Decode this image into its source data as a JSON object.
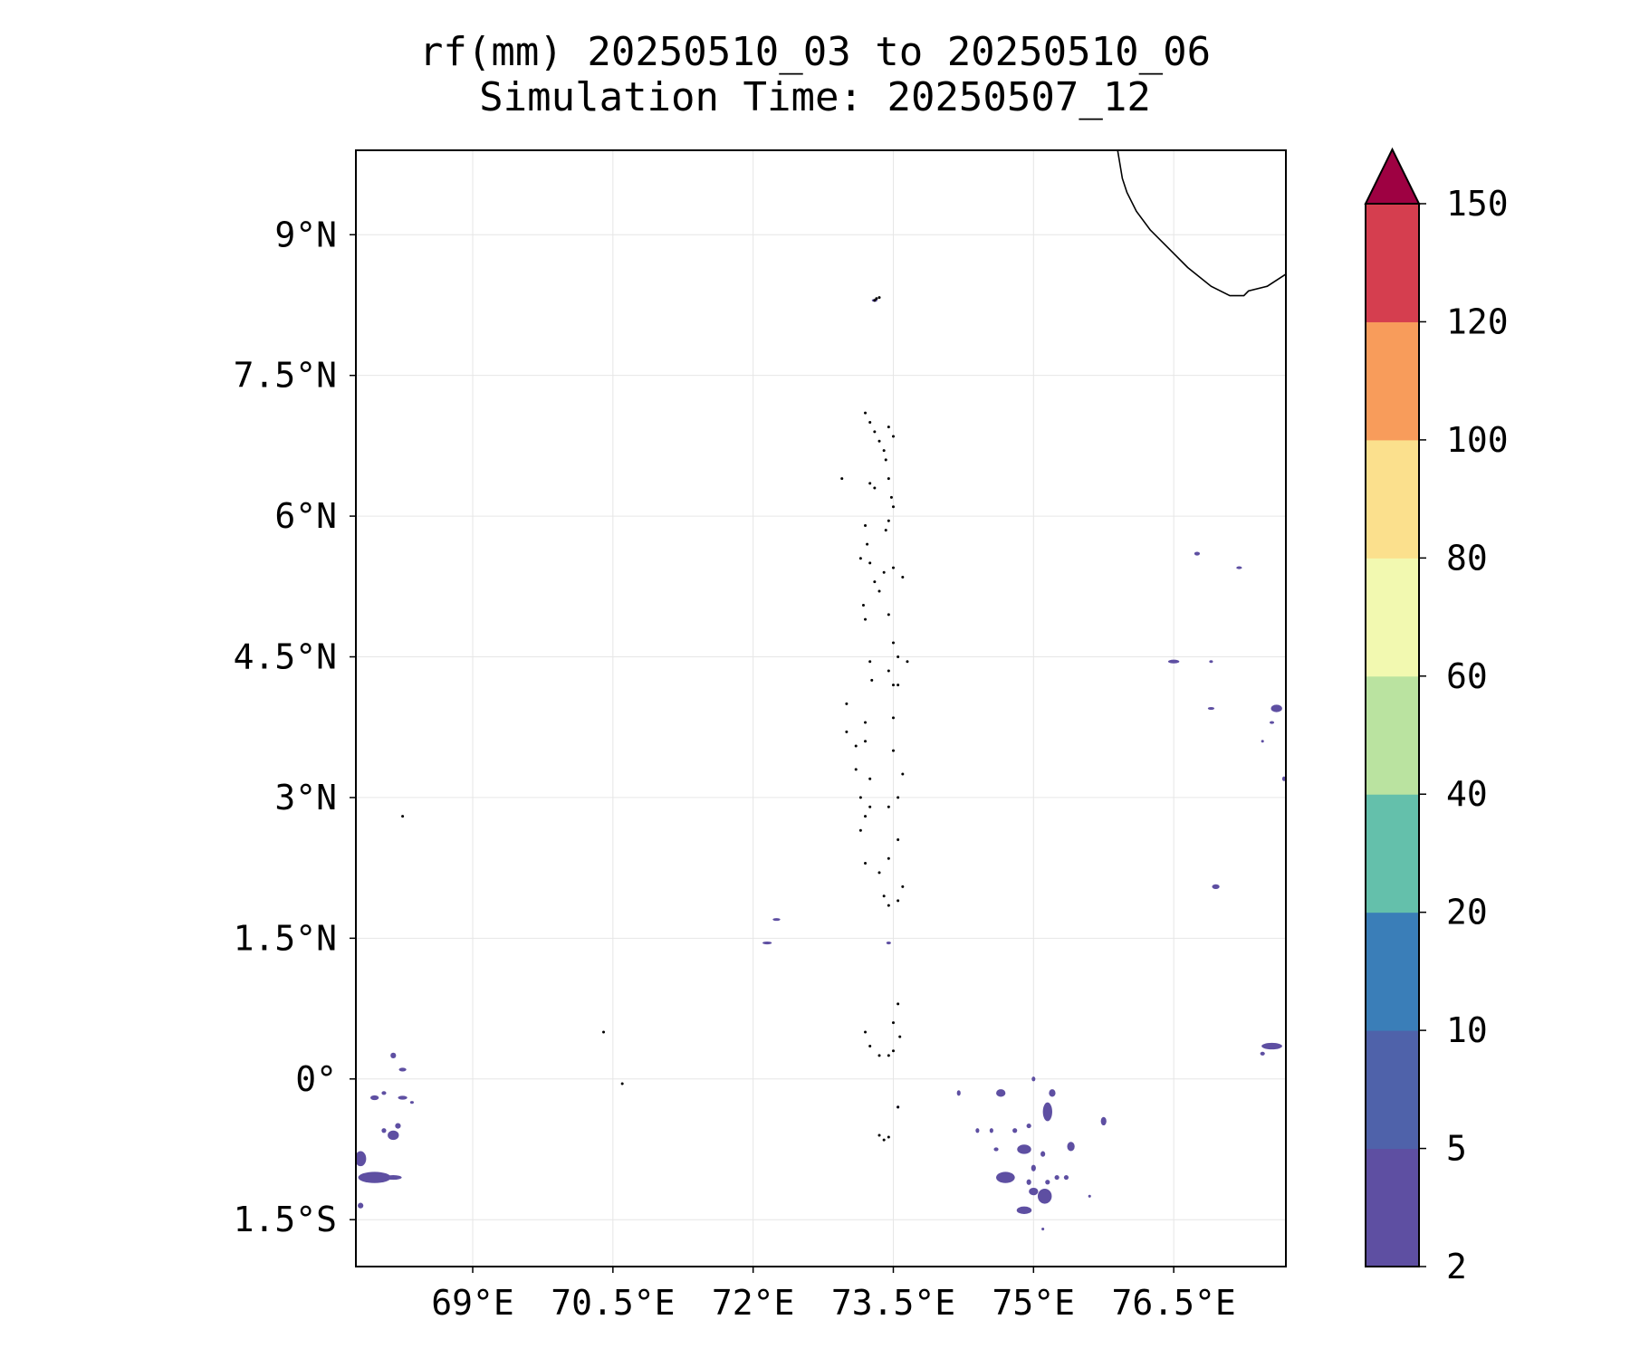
{
  "title": {
    "line1": "rf(mm) 20250510_03 to 20250510_06",
    "line2": "Simulation Time: 20250507_12"
  },
  "map": {
    "lon_range": [
      67.75,
      77.7
    ],
    "lat_range": [
      -2.0,
      9.9
    ],
    "x_ticks": [
      {
        "value": 69,
        "label": "69°E"
      },
      {
        "value": 70.5,
        "label": "70.5°E"
      },
      {
        "value": 72,
        "label": "72°E"
      },
      {
        "value": 73.5,
        "label": "73.5°E"
      },
      {
        "value": 75,
        "label": "75°E"
      },
      {
        "value": 76.5,
        "label": "76.5°E"
      }
    ],
    "y_ticks": [
      {
        "value": 9,
        "label": "9°N"
      },
      {
        "value": 7.5,
        "label": "7.5°N"
      },
      {
        "value": 6,
        "label": "6°N"
      },
      {
        "value": 4.5,
        "label": "4.5°N"
      },
      {
        "value": 3,
        "label": "3°N"
      },
      {
        "value": 1.5,
        "label": "1.5°N"
      },
      {
        "value": 0,
        "label": "0°"
      },
      {
        "value": -1.5,
        "label": "1.5°S"
      }
    ],
    "gridlines": true,
    "coastline": [
      [
        75.9,
        9.9
      ],
      [
        75.95,
        9.6
      ],
      [
        76.0,
        9.45
      ],
      [
        76.1,
        9.25
      ],
      [
        76.25,
        9.05
      ],
      [
        76.45,
        8.85
      ],
      [
        76.65,
        8.65
      ],
      [
        76.9,
        8.45
      ],
      [
        77.1,
        8.35
      ],
      [
        77.25,
        8.35
      ],
      [
        77.3,
        8.4
      ],
      [
        77.5,
        8.45
      ],
      [
        77.7,
        8.58
      ]
    ],
    "islands": [
      [
        73.3,
        8.3
      ],
      [
        73.32,
        8.32
      ],
      [
        73.35,
        8.33
      ],
      [
        73.2,
        7.1
      ],
      [
        73.25,
        7.0
      ],
      [
        73.3,
        6.9
      ],
      [
        73.35,
        6.8
      ],
      [
        73.4,
        6.7
      ],
      [
        73.45,
        6.95
      ],
      [
        73.5,
        6.85
      ],
      [
        73.42,
        6.6
      ],
      [
        73.45,
        6.4
      ],
      [
        73.48,
        6.2
      ],
      [
        73.5,
        6.1
      ],
      [
        72.95,
        6.4
      ],
      [
        73.25,
        6.35
      ],
      [
        73.3,
        6.3
      ],
      [
        73.2,
        5.9
      ],
      [
        73.22,
        5.7
      ],
      [
        73.25,
        5.5
      ],
      [
        73.3,
        5.3
      ],
      [
        73.35,
        5.2
      ],
      [
        73.42,
        5.85
      ],
      [
        73.45,
        5.95
      ],
      [
        73.4,
        5.4
      ],
      [
        73.5,
        5.45
      ],
      [
        73.6,
        5.35
      ],
      [
        73.15,
        5.55
      ],
      [
        73.18,
        5.05
      ],
      [
        73.2,
        4.9
      ],
      [
        73.45,
        4.95
      ],
      [
        73.5,
        4.65
      ],
      [
        73.55,
        4.5
      ],
      [
        73.65,
        4.45
      ],
      [
        73.45,
        4.35
      ],
      [
        73.5,
        4.2
      ],
      [
        73.55,
        4.2
      ],
      [
        73.25,
        4.45
      ],
      [
        73.27,
        4.25
      ],
      [
        73.0,
        4.0
      ],
      [
        73.0,
        3.7
      ],
      [
        73.1,
        3.55
      ],
      [
        73.2,
        3.8
      ],
      [
        73.2,
        3.6
      ],
      [
        73.1,
        3.3
      ],
      [
        73.25,
        3.2
      ],
      [
        73.15,
        3.0
      ],
      [
        73.2,
        2.8
      ],
      [
        73.15,
        2.65
      ],
      [
        73.25,
        2.9
      ],
      [
        73.5,
        3.5
      ],
      [
        73.6,
        3.25
      ],
      [
        73.55,
        3.0
      ],
      [
        73.45,
        2.9
      ],
      [
        73.5,
        3.85
      ],
      [
        73.55,
        2.55
      ],
      [
        73.45,
        2.35
      ],
      [
        73.2,
        2.3
      ],
      [
        73.35,
        2.2
      ],
      [
        73.4,
        1.95
      ],
      [
        73.45,
        1.85
      ],
      [
        73.55,
        1.9
      ],
      [
        73.6,
        2.05
      ],
      [
        73.55,
        0.8
      ],
      [
        73.5,
        0.6
      ],
      [
        73.57,
        0.45
      ],
      [
        73.2,
        0.5
      ],
      [
        73.25,
        0.35
      ],
      [
        73.35,
        0.25
      ],
      [
        73.45,
        0.25
      ],
      [
        73.5,
        0.3
      ],
      [
        70.4,
        0.5
      ],
      [
        68.25,
        2.8
      ],
      [
        70.6,
        -0.05
      ],
      [
        73.55,
        -0.3
      ],
      [
        73.35,
        -0.6
      ],
      [
        73.4,
        -0.65
      ],
      [
        73.45,
        -0.62
      ]
    ],
    "rain_patches": [
      {
        "lon": 73.3,
        "lat": 8.3,
        "w": 0.06,
        "h": 0.03
      },
      {
        "lon": 72.25,
        "lat": 1.7,
        "w": 0.08,
        "h": 0.03
      },
      {
        "lon": 72.15,
        "lat": 1.45,
        "w": 0.1,
        "h": 0.03
      },
      {
        "lon": 73.45,
        "lat": 1.45,
        "w": 0.05,
        "h": 0.03
      },
      {
        "lon": 76.5,
        "lat": 4.45,
        "w": 0.12,
        "h": 0.04
      },
      {
        "lon": 76.9,
        "lat": 4.45,
        "w": 0.04,
        "h": 0.02
      },
      {
        "lon": 76.75,
        "lat": 5.6,
        "w": 0.06,
        "h": 0.04
      },
      {
        "lon": 77.2,
        "lat": 5.45,
        "w": 0.06,
        "h": 0.03
      },
      {
        "lon": 76.9,
        "lat": 3.95,
        "w": 0.07,
        "h": 0.03
      },
      {
        "lon": 77.6,
        "lat": 3.95,
        "w": 0.12,
        "h": 0.08
      },
      {
        "lon": 77.55,
        "lat": 3.8,
        "w": 0.05,
        "h": 0.03
      },
      {
        "lon": 77.45,
        "lat": 3.6,
        "w": 0.03,
        "h": 0.02
      },
      {
        "lon": 77.68,
        "lat": 3.2,
        "w": 0.04,
        "h": 0.05
      },
      {
        "lon": 76.95,
        "lat": 2.05,
        "w": 0.08,
        "h": 0.05
      },
      {
        "lon": 77.55,
        "lat": 0.35,
        "w": 0.22,
        "h": 0.07
      },
      {
        "lon": 77.45,
        "lat": 0.27,
        "w": 0.05,
        "h": 0.04
      },
      {
        "lon": 68.15,
        "lat": 0.25,
        "w": 0.06,
        "h": 0.06
      },
      {
        "lon": 68.25,
        "lat": 0.1,
        "w": 0.08,
        "h": 0.04
      },
      {
        "lon": 67.95,
        "lat": -0.2,
        "w": 0.09,
        "h": 0.05
      },
      {
        "lon": 68.05,
        "lat": -0.15,
        "w": 0.05,
        "h": 0.04
      },
      {
        "lon": 68.25,
        "lat": -0.2,
        "w": 0.1,
        "h": 0.04
      },
      {
        "lon": 68.35,
        "lat": -0.25,
        "w": 0.04,
        "h": 0.03
      },
      {
        "lon": 68.2,
        "lat": -0.5,
        "w": 0.06,
        "h": 0.06
      },
      {
        "lon": 68.05,
        "lat": -0.55,
        "w": 0.05,
        "h": 0.05
      },
      {
        "lon": 68.15,
        "lat": -0.6,
        "w": 0.12,
        "h": 0.1
      },
      {
        "lon": 67.8,
        "lat": -0.85,
        "w": 0.12,
        "h": 0.16
      },
      {
        "lon": 67.95,
        "lat": -1.05,
        "w": 0.35,
        "h": 0.12
      },
      {
        "lon": 68.15,
        "lat": -1.05,
        "w": 0.18,
        "h": 0.05
      },
      {
        "lon": 67.8,
        "lat": -1.35,
        "w": 0.06,
        "h": 0.06
      },
      {
        "lon": 73.55,
        "lat": -0.3,
        "w": 0.03,
        "h": 0.03
      },
      {
        "lon": 74.2,
        "lat": -0.15,
        "w": 0.04,
        "h": 0.06
      },
      {
        "lon": 74.65,
        "lat": -0.15,
        "w": 0.1,
        "h": 0.08
      },
      {
        "lon": 75.0,
        "lat": 0.0,
        "w": 0.04,
        "h": 0.05
      },
      {
        "lon": 75.2,
        "lat": -0.15,
        "w": 0.07,
        "h": 0.08
      },
      {
        "lon": 75.15,
        "lat": -0.35,
        "w": 0.1,
        "h": 0.2
      },
      {
        "lon": 75.75,
        "lat": -0.45,
        "w": 0.06,
        "h": 0.09
      },
      {
        "lon": 74.8,
        "lat": -0.55,
        "w": 0.05,
        "h": 0.05
      },
      {
        "lon": 74.95,
        "lat": -0.5,
        "w": 0.05,
        "h": 0.05
      },
      {
        "lon": 74.55,
        "lat": -0.55,
        "w": 0.04,
        "h": 0.05
      },
      {
        "lon": 74.6,
        "lat": -0.75,
        "w": 0.05,
        "h": 0.04
      },
      {
        "lon": 74.9,
        "lat": -0.75,
        "w": 0.15,
        "h": 0.1
      },
      {
        "lon": 75.4,
        "lat": -0.72,
        "w": 0.08,
        "h": 0.1
      },
      {
        "lon": 75.1,
        "lat": -0.8,
        "w": 0.05,
        "h": 0.06
      },
      {
        "lon": 75.0,
        "lat": -0.95,
        "w": 0.05,
        "h": 0.07
      },
      {
        "lon": 74.7,
        "lat": -1.05,
        "w": 0.2,
        "h": 0.12
      },
      {
        "lon": 74.95,
        "lat": -1.1,
        "w": 0.05,
        "h": 0.06
      },
      {
        "lon": 75.15,
        "lat": -1.1,
        "w": 0.05,
        "h": 0.05
      },
      {
        "lon": 75.25,
        "lat": -1.05,
        "w": 0.05,
        "h": 0.05
      },
      {
        "lon": 75.35,
        "lat": -1.05,
        "w": 0.05,
        "h": 0.05
      },
      {
        "lon": 75.12,
        "lat": -1.25,
        "w": 0.15,
        "h": 0.16
      },
      {
        "lon": 75.0,
        "lat": -1.2,
        "w": 0.1,
        "h": 0.08
      },
      {
        "lon": 75.6,
        "lat": -1.25,
        "w": 0.03,
        "h": 0.03
      },
      {
        "lon": 74.9,
        "lat": -1.4,
        "w": 0.16,
        "h": 0.08
      },
      {
        "lon": 75.1,
        "lat": -1.6,
        "w": 0.03,
        "h": 0.03
      },
      {
        "lon": 74.4,
        "lat": -0.55,
        "w": 0.04,
        "h": 0.05
      }
    ]
  },
  "colorbar": {
    "levels": [
      {
        "value": 2,
        "label": "2"
      },
      {
        "value": 5,
        "label": "5"
      },
      {
        "value": 10,
        "label": "10"
      },
      {
        "value": 20,
        "label": "20"
      },
      {
        "value": 40,
        "label": "40"
      },
      {
        "value": 60,
        "label": "60"
      },
      {
        "value": 80,
        "label": "80"
      },
      {
        "value": 100,
        "label": "100"
      },
      {
        "value": 120,
        "label": "120"
      },
      {
        "value": 150,
        "label": "150"
      }
    ],
    "colors": [
      "#5e4fa2",
      "#4f62aa",
      "#3a7eb8",
      "#64c0ab",
      "#bae3a0",
      "#f2f9b0",
      "#fbe08d",
      "#f89c5b",
      "#d53e4f"
    ],
    "extend_color": "#9e0142"
  },
  "rain_color": "#5e4fa2",
  "coast_color": "#000000",
  "grid_color": "#e6e6e6"
}
